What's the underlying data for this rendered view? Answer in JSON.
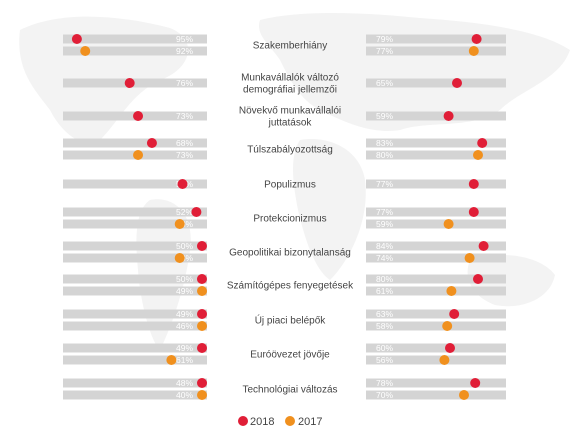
{
  "chart_data": {
    "type": "bar",
    "series": [
      {
        "name": "2018",
        "color": "#e01e37"
      },
      {
        "name": "2017",
        "color": "#f0901e"
      }
    ],
    "categories": [
      {
        "label": [
          "Szakemberhiány"
        ],
        "left": [
          95,
          92
        ],
        "right": [
          79,
          77
        ]
      },
      {
        "label": [
          "Munkavállalók változó",
          "demográfiai jellemzői"
        ],
        "left": [
          76
        ],
        "right": [
          65
        ]
      },
      {
        "label": [
          "Növekvő munkavállalói",
          "juttatások"
        ],
        "left": [
          73
        ],
        "right": [
          59
        ]
      },
      {
        "label": [
          "Túlszabályozottság"
        ],
        "left": [
          68,
          73
        ],
        "right": [
          83,
          80
        ]
      },
      {
        "label": [
          "Populizmus"
        ],
        "left": [
          57
        ],
        "right": [
          77
        ]
      },
      {
        "label": [
          "Protekcionizmus"
        ],
        "left": [
          52,
          58
        ],
        "right": [
          77,
          59
        ]
      },
      {
        "label": [
          "Geopolitikai bizonytalanság"
        ],
        "left": [
          50,
          58
        ],
        "right": [
          84,
          74
        ]
      },
      {
        "label": [
          "Számítógépes fenyegetések"
        ],
        "left": [
          50,
          49
        ],
        "right": [
          80,
          61
        ]
      },
      {
        "label": [
          "Új piaci belépők"
        ],
        "left": [
          49,
          46
        ],
        "right": [
          63,
          58
        ]
      },
      {
        "label": [
          "Euróövezet jövője"
        ],
        "left": [
          49,
          61
        ],
        "right": [
          60,
          56
        ]
      },
      {
        "label": [
          "Technológiai változás"
        ],
        "left": [
          48,
          40
        ],
        "right": [
          78,
          70
        ]
      }
    ],
    "legend": {
      "placement": "bottom-center",
      "items": [
        "2018",
        "2017"
      ]
    },
    "background": "faint world map"
  }
}
